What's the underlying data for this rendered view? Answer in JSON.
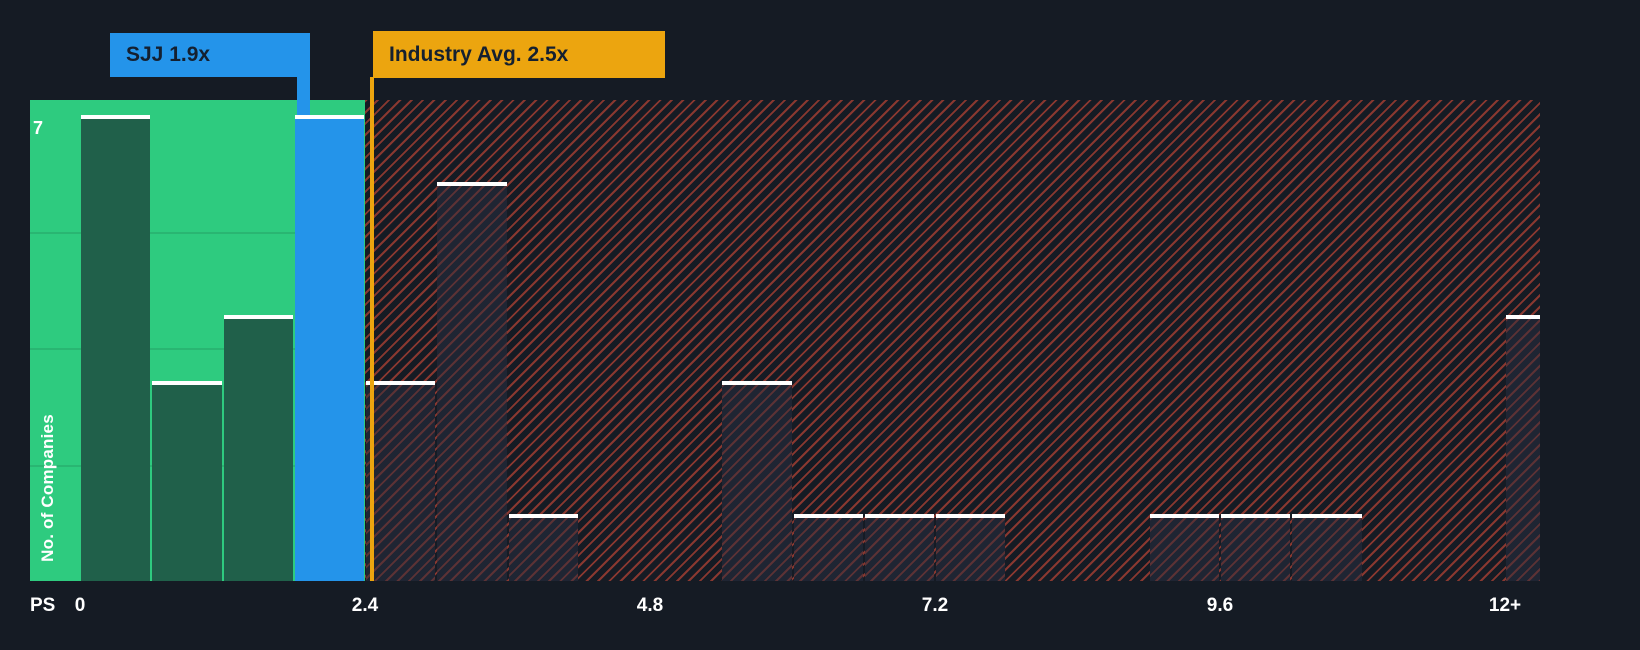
{
  "chart_data": {
    "type": "bar",
    "subtype": "histogram",
    "ylabel": "No. of Companies",
    "x_axis_prefix": "PS",
    "x_ticks": [
      "0",
      "2.4",
      "4.8",
      "7.2",
      "9.6",
      "12+"
    ],
    "x_tick_values": [
      0,
      2.4,
      4.8,
      7.2,
      9.6,
      12
    ],
    "ylim": [
      0,
      7
    ],
    "y_max_tick": "7",
    "bin_width": 0.6,
    "bars": [
      {
        "x0": 0.0,
        "count": 7,
        "zone": "green"
      },
      {
        "x0": 0.6,
        "count": 3,
        "zone": "green"
      },
      {
        "x0": 1.2,
        "count": 4,
        "zone": "green"
      },
      {
        "x0": 1.8,
        "count": 7,
        "zone": "company"
      },
      {
        "x0": 2.4,
        "count": 3,
        "zone": "red"
      },
      {
        "x0": 3.0,
        "count": 6,
        "zone": "red"
      },
      {
        "x0": 3.6,
        "count": 1,
        "zone": "red"
      },
      {
        "x0": 5.4,
        "count": 3,
        "zone": "red"
      },
      {
        "x0": 6.0,
        "count": 1,
        "zone": "red"
      },
      {
        "x0": 6.6,
        "count": 1,
        "zone": "red"
      },
      {
        "x0": 7.2,
        "count": 1,
        "zone": "red"
      },
      {
        "x0": 9.0,
        "count": 1,
        "zone": "red"
      },
      {
        "x0": 9.6,
        "count": 1,
        "zone": "red"
      },
      {
        "x0": 10.2,
        "count": 1,
        "zone": "red"
      },
      {
        "x0": 12.0,
        "count": 4,
        "zone": "red"
      }
    ],
    "company_marker": {
      "label": "SJJ 1.9x",
      "ticker": "SJJ",
      "value": 1.9
    },
    "industry_marker": {
      "label": "Industry Avg. 2.5x",
      "value": 2.5
    },
    "zones": {
      "green_range": [
        0,
        2.4
      ],
      "hatched_range": [
        2.4,
        12.6
      ]
    },
    "colors": {
      "background": "#151b24",
      "green_zone": "#2ecb7f",
      "green_bar": "#20604a",
      "company_bar": "#2494ea",
      "company_callout": "#2494ea",
      "industry_callout": "#eca50f",
      "red_hatch": "#e8503a",
      "dark_bar": "#1f2533",
      "bar_top": "#ffffff",
      "callout_text": "#142030"
    }
  }
}
